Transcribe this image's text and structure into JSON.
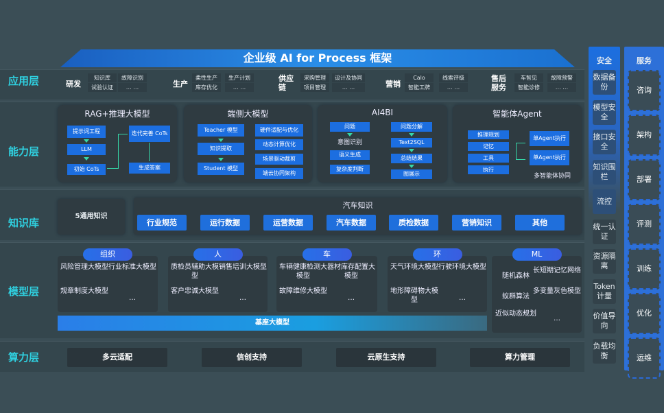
{
  "title": "企业级 AI for Process 框架",
  "layers": {
    "app": "应用层",
    "capability": "能力层",
    "knowledge": "知识库",
    "model": "模型层",
    "compute": "算力层"
  },
  "app": [
    {
      "name": "研发",
      "items": [
        "知识库",
        "试验认证",
        "故障识别",
        "… …"
      ]
    },
    {
      "name": "生产",
      "items": [
        "柔性生产",
        "库存优化",
        "生产计划",
        "… …"
      ]
    },
    {
      "name": "供应链",
      "items": [
        "采购管理",
        "项目管理",
        "设计及协同",
        "… …"
      ]
    },
    {
      "name": "营销",
      "items": [
        "Calo",
        "智能工牌",
        "线索评级",
        "… …"
      ]
    },
    {
      "name": "售后服务",
      "items": [
        "车智见",
        "智能诊修",
        "故障预警",
        "… …"
      ]
    }
  ],
  "capability": {
    "rag": {
      "title": "RAG+推理大模型",
      "items": [
        "提示词工程",
        "LLM",
        "初始 CoTs",
        "迭代完善 CoTs",
        "生成答案"
      ]
    },
    "edge": {
      "title": "端侧大模型",
      "items": [
        "Teacher 模型",
        "知识提取",
        "Student 模型",
        "硬件适配与优化",
        "动态计算优化",
        "场景驱动裁剪",
        "端云协同架构"
      ]
    },
    "ai4bi": {
      "title": "AI4BI",
      "items": [
        "问题",
        "意图识别",
        "语义生成",
        "复杂度判断",
        "问题分解",
        "Text2SQL",
        "总结结果",
        "图展示"
      ]
    },
    "agent": {
      "title": "智能体Agent",
      "items": [
        "推理规划",
        "记忆",
        "工具",
        "执行",
        "单Agent执行",
        "单Agent执行"
      ],
      "caption": "多智能体协同"
    }
  },
  "knowledge": {
    "general": "5通用知识",
    "auto_title": "汽车知识",
    "chips": [
      "行业规范",
      "运行数据",
      "运营数据",
      "汽车数据",
      "质检数据",
      "营销知识",
      "其他"
    ]
  },
  "models": {
    "groups": [
      {
        "name": "组织",
        "items": [
          "风险管理大模型",
          "行业标准大模型",
          "规章制度大模型",
          "…"
        ]
      },
      {
        "name": "人",
        "items": [
          "质检员辅助大模型",
          "销售培训大模型",
          "客户忠诚大模型",
          "…"
        ]
      },
      {
        "name": "车",
        "items": [
          "车辆健康检测大模型",
          "器材库存配置大模型",
          "故障维修大模型",
          "…"
        ]
      },
      {
        "name": "环",
        "items": [
          "天气环境大模型",
          "行驶环境大模型",
          "地形障碍物大模型",
          "…"
        ]
      },
      {
        "name": "ML",
        "items": [
          "随机森林",
          "长短期记忆网络",
          "蚁群算法",
          "多变量灰色模型",
          "近似动态规划",
          "…"
        ]
      }
    ],
    "base": "基座大模型"
  },
  "compute": [
    "多云适配",
    "信创支持",
    "云原生支持",
    "算力管理"
  ],
  "security": {
    "title": "安全",
    "items": [
      "数据备份",
      "模型安全",
      "接口安全",
      "知识围栏",
      "流控",
      "统一认证",
      "资源隔离",
      "Token计量",
      "价值导向",
      "负载均衡"
    ]
  },
  "services": {
    "title": "服务",
    "items": [
      "咨询",
      "架构",
      "部署",
      "评测",
      "训练",
      "优化",
      "运维"
    ]
  }
}
